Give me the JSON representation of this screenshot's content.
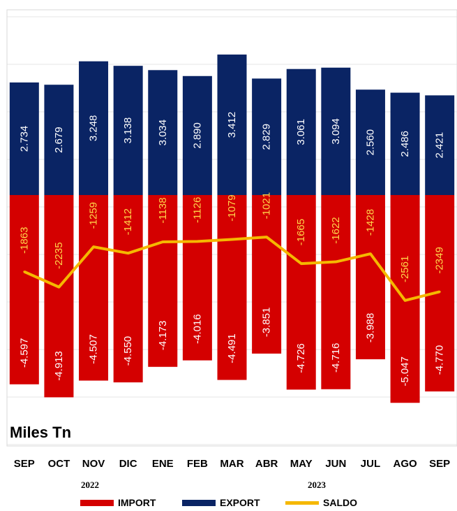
{
  "chart_data": {
    "type": "bar",
    "categories": [
      "SEP",
      "OCT",
      "NOV",
      "DIC",
      "ENE",
      "FEB",
      "MAR",
      "ABR",
      "MAY",
      "JUN",
      "JUL",
      "AGO",
      "SEP"
    ],
    "series": [
      {
        "name": "IMPORT",
        "color": "#d40000",
        "values": [
          -4597,
          -4913,
          -4507,
          -4550,
          -4173,
          -4016,
          -4491,
          -3851,
          -4726,
          -4716,
          -3988,
          -5047,
          -4770
        ],
        "labels": [
          "-4.597",
          "-4.913",
          "-4.507",
          "-4.550",
          "-4.173",
          "-4.016",
          "-4.491",
          "-3.851",
          "-4.726",
          "-4.716",
          "-3.988",
          "-5.047",
          "-4.770"
        ]
      },
      {
        "name": "EXPORT",
        "color": "#0a2464",
        "values": [
          2734,
          2679,
          3248,
          3138,
          3034,
          2890,
          3412,
          2829,
          3061,
          3094,
          2560,
          2486,
          2421
        ],
        "labels": [
          "2.734",
          "2.679",
          "3.248",
          "3.138",
          "3.034",
          "2.890",
          "3.412",
          "2.829",
          "3.061",
          "3.094",
          "2.560",
          "2.486",
          "2.421"
        ]
      },
      {
        "name": "SALDO",
        "color": "#f5b800",
        "type": "line",
        "values": [
          -1863,
          -2235,
          -1259,
          -1412,
          -1138,
          -1126,
          -1079,
          -1021,
          -1665,
          -1622,
          -1428,
          -2561,
          -2349
        ],
        "labels": [
          "-1863",
          "-2235",
          "-1259",
          "-1412",
          "-1138",
          "-1126",
          "-1079",
          "-1021",
          "-1665",
          "-1622",
          "-1428",
          "-2561",
          "-2349"
        ]
      }
    ],
    "unit_label": "Miles Tn",
    "years": [
      "2022",
      "2023"
    ],
    "ylim": [
      -5300,
      4200
    ],
    "grid": true,
    "legend_position": "bottom"
  }
}
